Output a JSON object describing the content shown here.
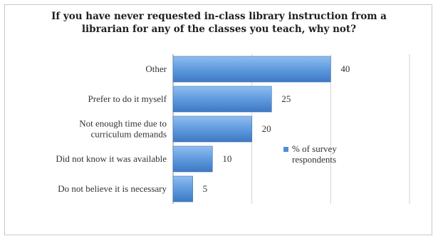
{
  "chart_data": {
    "type": "bar",
    "orientation": "horizontal",
    "title_lines": [
      "If you have never requested in-class library instruction from a",
      "librarian for any of the classes you teach, why not?"
    ],
    "categories": [
      [
        "Other"
      ],
      [
        "Prefer to do it myself"
      ],
      [
        "Not enough time due to",
        "curriculum demands"
      ],
      [
        "Did not know it was available"
      ],
      [
        "Do not believe it is necessary"
      ]
    ],
    "series": [
      {
        "name": "% of survey respondents",
        "values": [
          40,
          25,
          20,
          10,
          5
        ]
      }
    ],
    "legend_lines": [
      "% of survey",
      "respondents"
    ],
    "xlim": [
      0,
      60
    ],
    "grid": true,
    "legend_position": "right",
    "bar_color": "#4f8fd6"
  }
}
